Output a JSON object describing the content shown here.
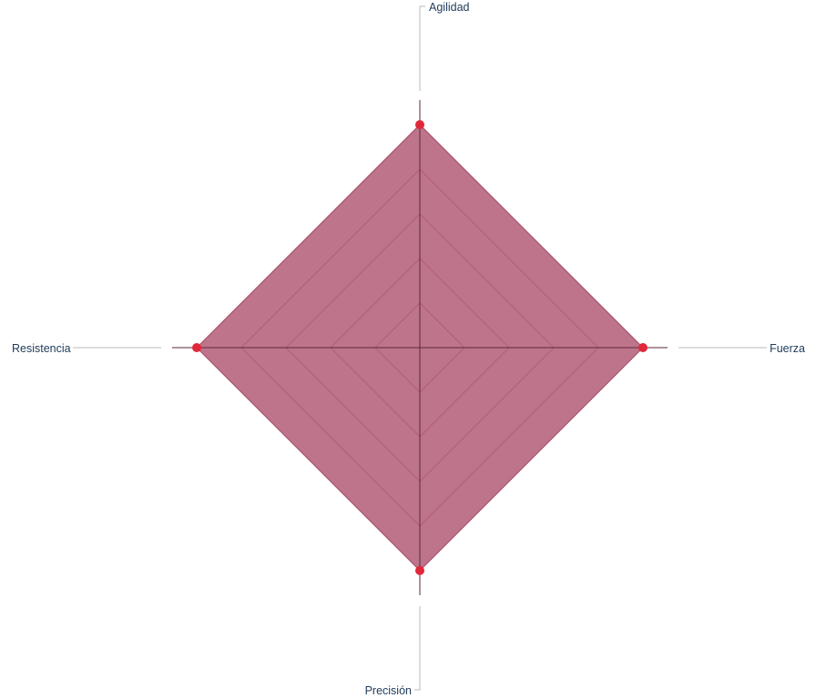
{
  "chart_data": {
    "type": "radar",
    "axes": [
      "Agilidad",
      "Fuerza",
      "Precisión",
      "Resistencia"
    ],
    "series": [
      {
        "values": [
          5,
          5,
          5,
          5
        ]
      }
    ],
    "rlim": [
      0,
      5
    ],
    "grid_levels": [
      1,
      2,
      3,
      4,
      5
    ],
    "grid": true,
    "legend": "none"
  },
  "colors": {
    "fill": "#b05570",
    "marker": "#e0283a",
    "axis_label": "#1f3a5a"
  }
}
